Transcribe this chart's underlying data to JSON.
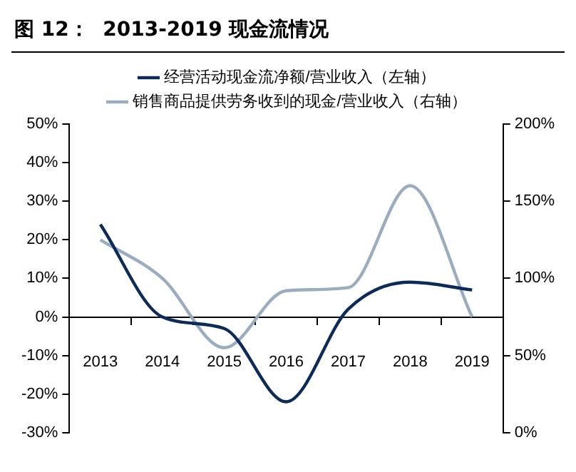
{
  "chart_data": {
    "type": "line",
    "title": "图 12：  2013-2019 现金流情况",
    "categories": [
      "2013",
      "2014",
      "2015",
      "2016",
      "2017",
      "2018",
      "2019"
    ],
    "series": [
      {
        "name": "经营活动现金流净额/营业收入（左轴）",
        "color": "#0d2b5a",
        "values": [
          24,
          0,
          -3,
          -22,
          2,
          9,
          7
        ]
      },
      {
        "name": "销售商品提供劳务收到的现金/营业收入（右轴）",
        "color": "#9aacc0",
        "axis": "y2",
        "values": [
          125,
          100,
          55,
          92,
          94,
          160,
          75
        ]
      }
    ],
    "ylim": [
      -30,
      50
    ],
    "yticks": [
      {
        "value": -30,
        "label": "-30%"
      },
      {
        "value": -20,
        "label": "-20%"
      },
      {
        "value": -10,
        "label": "-10%"
      },
      {
        "value": 0,
        "label": "0%"
      },
      {
        "value": 10,
        "label": "10%"
      },
      {
        "value": 20,
        "label": "20%"
      },
      {
        "value": 30,
        "label": "30%"
      },
      {
        "value": 40,
        "label": "40%"
      },
      {
        "value": 50,
        "label": "50%"
      }
    ],
    "y2lim": [
      0,
      200
    ],
    "y2ticks": [
      {
        "value": 0,
        "label": "0%"
      },
      {
        "value": 50,
        "label": "50%"
      },
      {
        "value": 100,
        "label": "100%"
      },
      {
        "value": 150,
        "label": "150%"
      },
      {
        "value": 200,
        "label": "200%"
      }
    ],
    "grid": false,
    "legend": "top",
    "marker": "none",
    "line_style": "solid"
  }
}
